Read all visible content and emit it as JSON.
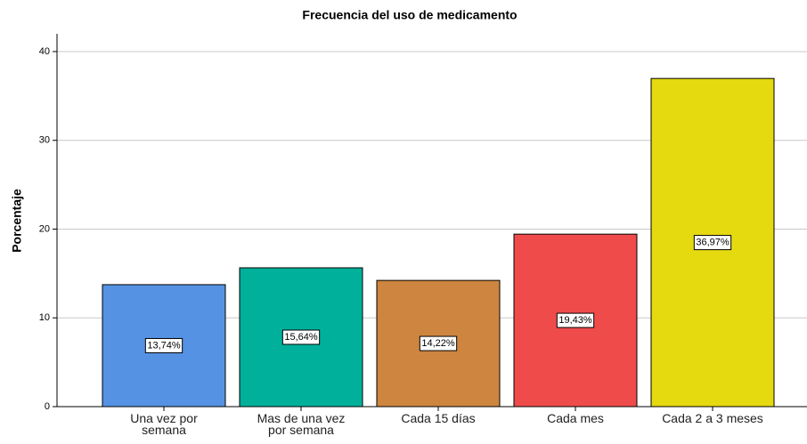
{
  "chart_data": {
    "type": "bar",
    "title": "Frecuencia del uso de medicamento",
    "y_label": "Porcentaje",
    "categories": [
      "Una vez por semana",
      "Mas de una vez por semana",
      "Cada 15 días",
      "Cada mes",
      "Cada 2 a 3 meses"
    ],
    "values": [
      13.74,
      15.64,
      14.22,
      19.43,
      36.97
    ],
    "value_labels": [
      "13,74%",
      "15,64%",
      "14,22%",
      "19,43%",
      "36,97%"
    ],
    "colors": [
      "#5592e3",
      "#00b09b",
      "#cd853f",
      "#ef4b4b",
      "#e5d910"
    ],
    "ylim": [
      0,
      42
    ],
    "yticks": [
      0,
      10,
      20,
      30,
      40
    ],
    "grid": true
  }
}
